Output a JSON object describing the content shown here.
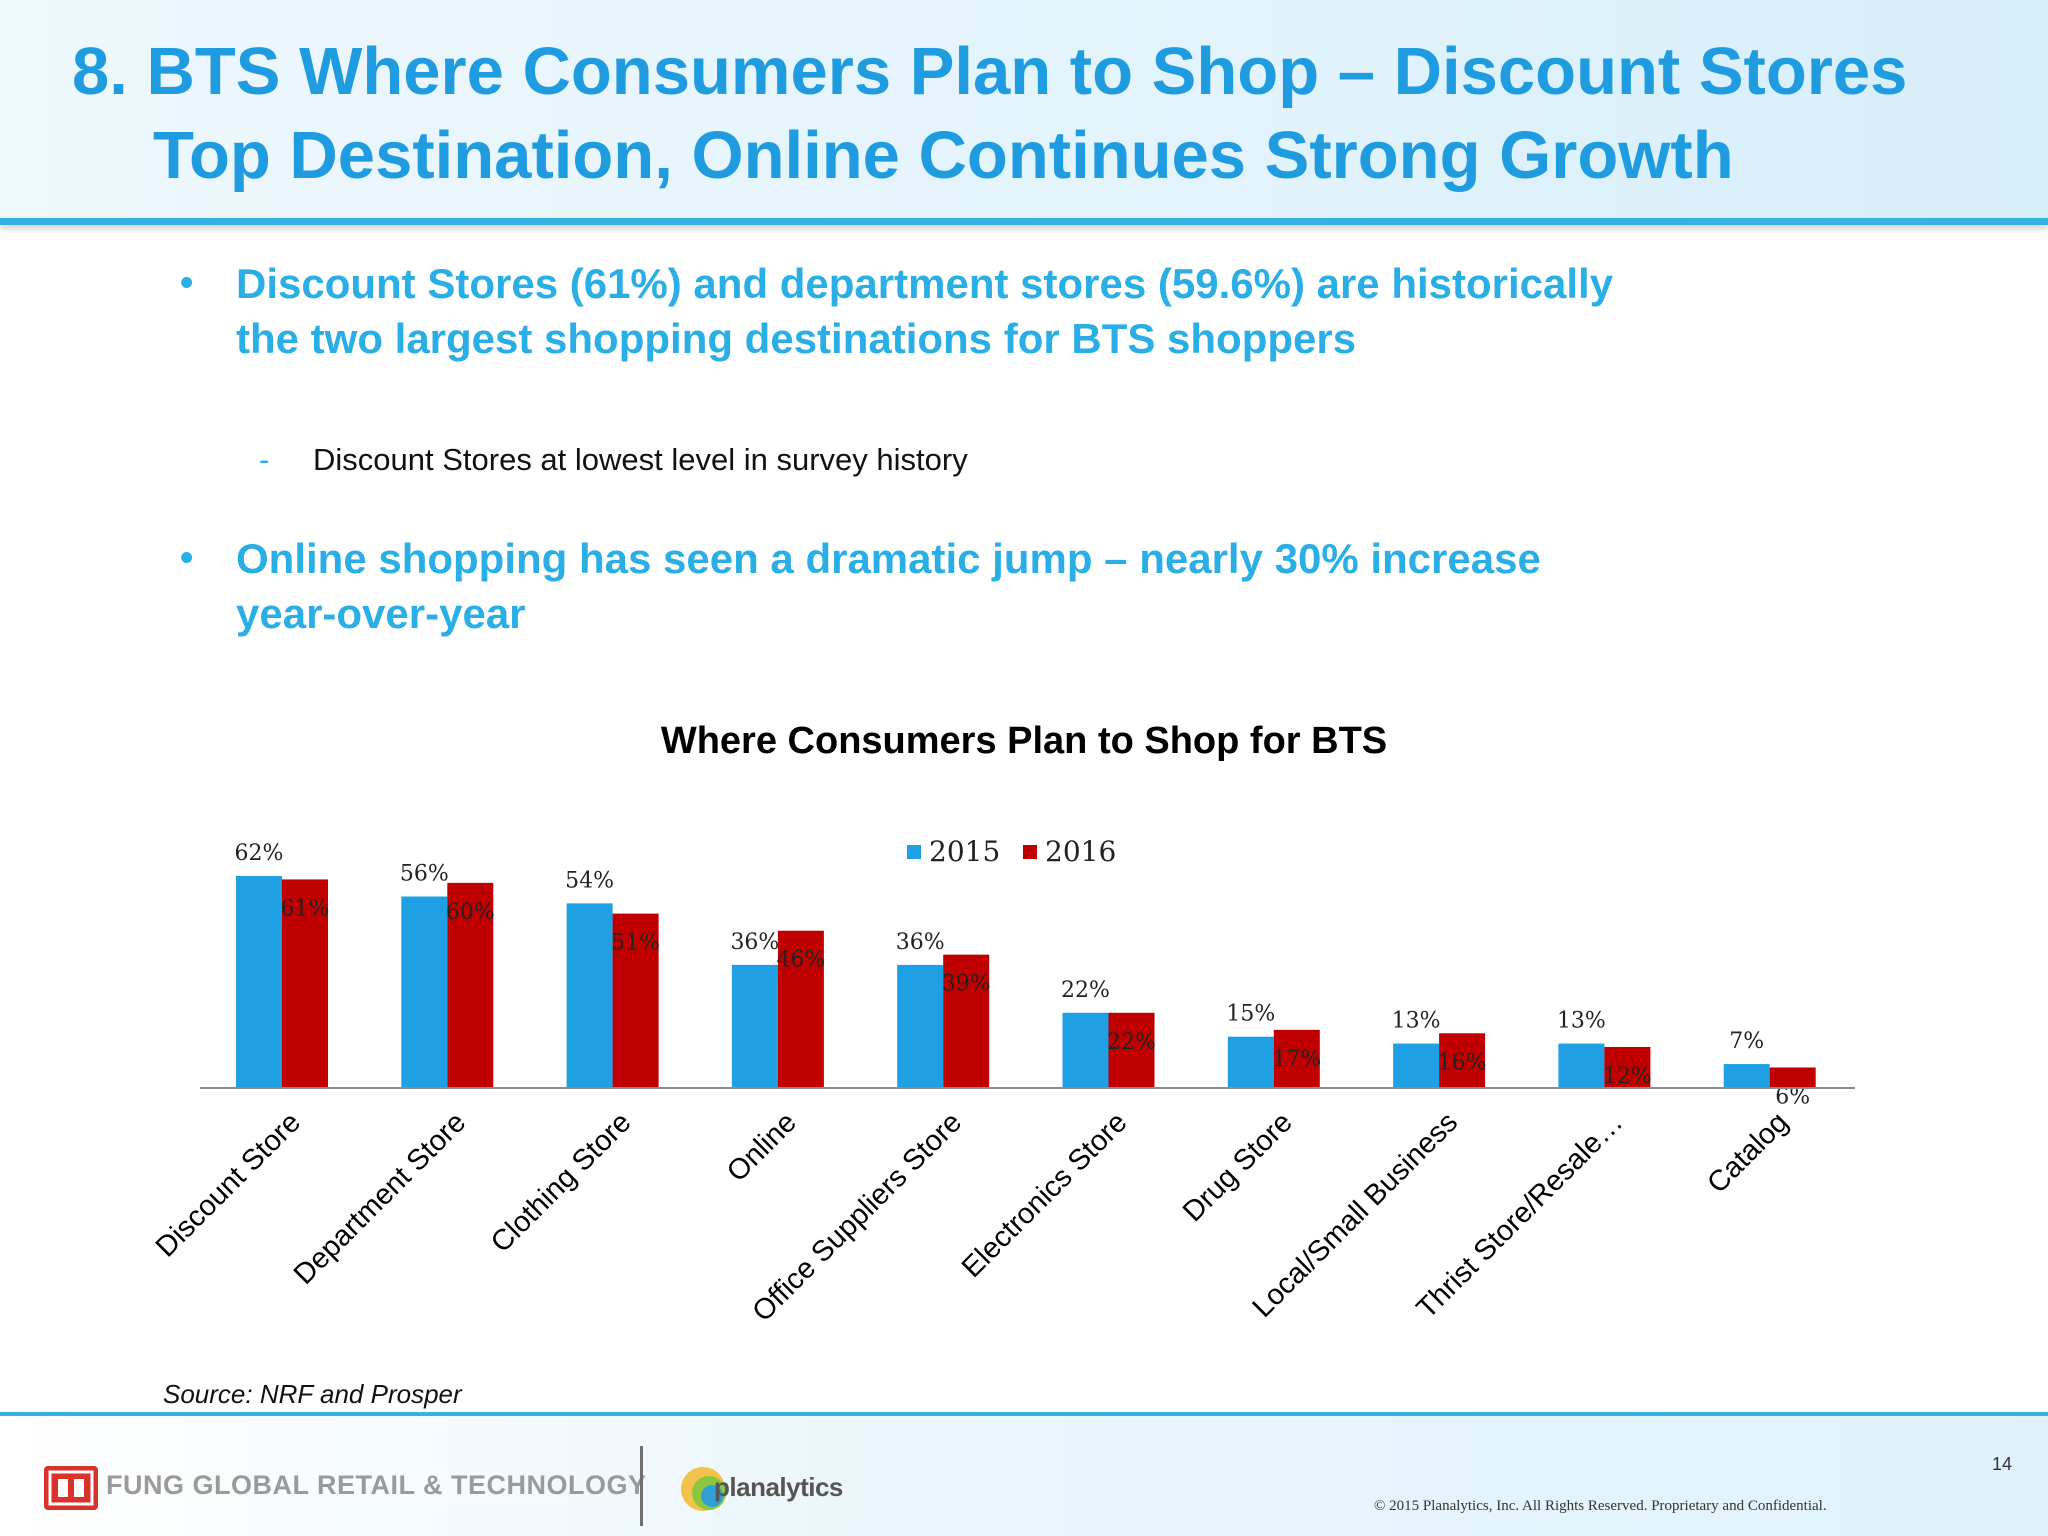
{
  "slide": {
    "title_line1": "8. BTS Where Consumers Plan to Shop – Discount Stores",
    "title_line2": "Top Destination, Online Continues Strong Growth",
    "bullets": [
      {
        "line1": "Discount Stores (61%) and department stores (59.6%) are historically",
        "line2": "the two largest shopping destinations for BTS shoppers"
      },
      {
        "line1": "Online shopping has seen a dramatic jump – nearly 30% increase",
        "line2": "year-over-year"
      }
    ],
    "sub_bullet": "Discount Stores at lowest level in survey history",
    "bullet_marker": "•",
    "sub_marker": "-",
    "source": "Source: NRF and Prosper"
  },
  "footer": {
    "company": "FUNG GLOBAL RETAIL & TECHNOLOGY",
    "partner": "planalytics",
    "page_number": "14",
    "copyright": "© 2015 Planalytics, Inc. All Rights Reserved. Proprietary and Confidential."
  },
  "colors": {
    "title": "#1f9be0",
    "series_2015": "#1fa0e4",
    "series_2016": "#c00000"
  },
  "chart_data": {
    "type": "bar",
    "title": "Where Consumers Plan to Shop for BTS",
    "categories": [
      "Discount Store",
      "Department Store",
      "Clothing Store",
      "Online",
      "Office Suppliers Store",
      "Electronics Store",
      "Drug Store",
      "Local/Small Business",
      "Thrist Store/Resale…",
      "Catalog"
    ],
    "series": [
      {
        "name": "2015",
        "values": [
          62,
          56,
          54,
          36,
          36,
          22,
          15,
          13,
          13,
          7
        ],
        "labels": [
          "62%",
          "56%",
          "54%",
          "36%",
          "36%",
          "22%",
          "15%",
          "13%",
          "13%",
          "7%"
        ]
      },
      {
        "name": "2016",
        "values": [
          61,
          60,
          51,
          46,
          39,
          22,
          17,
          16,
          12,
          6
        ],
        "labels": [
          "61%",
          "60%",
          "51%",
          "46%",
          "39%",
          "22%",
          "17%",
          "16%",
          "12%",
          "6%"
        ]
      }
    ],
    "xlabel": "",
    "ylabel": "",
    "ylim": [
      0,
      62
    ],
    "legend_position": "top-center",
    "grid": false
  }
}
